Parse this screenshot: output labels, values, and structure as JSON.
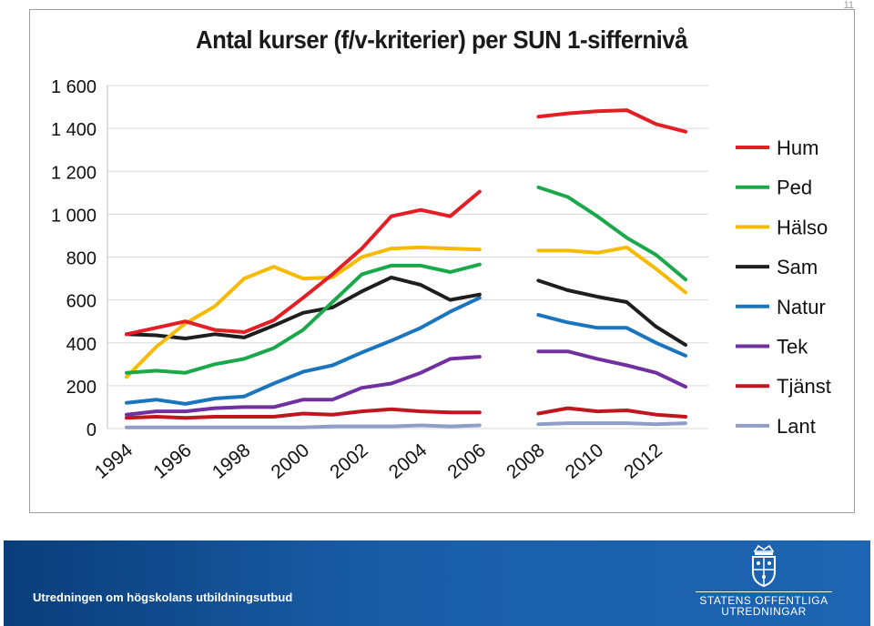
{
  "page": {
    "number": "11",
    "footer_text": "Utredningen om högskolans utbildningsutbud",
    "logo_line1": "STATENS OFFENTLIGA",
    "logo_line2": "UTREDNINGAR"
  },
  "chart_data": {
    "type": "line",
    "title": "Antal kurser (f/v-kriterier) per SUN 1-siffernivå",
    "xlabel": "",
    "ylabel": "",
    "ylim": [
      0,
      1600
    ],
    "yticks": [
      0,
      200,
      400,
      600,
      800,
      1000,
      1200,
      1400,
      1600
    ],
    "ytick_labels": [
      "0",
      "200",
      "400",
      "600",
      "800",
      "1 000",
      "1 200",
      "1 400",
      "1 600"
    ],
    "xtick_labels": [
      "1994",
      "1996",
      "1998",
      "2000",
      "2002",
      "2004",
      "2006",
      "2008",
      "2010",
      "2012"
    ],
    "categories": [
      "1994",
      "1995",
      "1996",
      "1997",
      "1998",
      "1999",
      "2000",
      "2001",
      "2002",
      "2003",
      "2004",
      "2005",
      "2006",
      "2007",
      "2008",
      "2009",
      "2010",
      "2011",
      "2012",
      "2013"
    ],
    "gap_after_index": 12,
    "grid": "horizontal",
    "legend_position": "right",
    "series": [
      {
        "name": "Hum",
        "color": "#e31e24",
        "values": [
          440,
          470,
          500,
          460,
          450,
          505,
          610,
          720,
          840,
          990,
          1020,
          990,
          1105,
          null,
          1455,
          1470,
          1480,
          1485,
          1420,
          1385
        ]
      },
      {
        "name": "Ped",
        "color": "#1aa84b",
        "values": [
          260,
          270,
          260,
          300,
          325,
          375,
          460,
          590,
          720,
          760,
          760,
          730,
          765,
          null,
          1125,
          1080,
          990,
          890,
          810,
          695
        ]
      },
      {
        "name": "Hälso",
        "color": "#f6bb00",
        "values": [
          240,
          380,
          490,
          570,
          700,
          755,
          700,
          705,
          800,
          840,
          845,
          840,
          835,
          null,
          830,
          830,
          820,
          845,
          745,
          635
        ]
      },
      {
        "name": "Sam",
        "color": "#1e1e1e",
        "values": [
          440,
          435,
          420,
          440,
          425,
          480,
          540,
          565,
          640,
          705,
          670,
          600,
          625,
          null,
          690,
          645,
          615,
          590,
          475,
          390
        ]
      },
      {
        "name": "Natur",
        "color": "#1b75bc",
        "values": [
          120,
          135,
          115,
          140,
          150,
          210,
          265,
          295,
          355,
          410,
          470,
          545,
          610,
          null,
          530,
          495,
          470,
          470,
          400,
          340
        ]
      },
      {
        "name": "Tek",
        "color": "#7030a0",
        "values": [
          65,
          80,
          80,
          95,
          100,
          100,
          135,
          135,
          190,
          210,
          260,
          325,
          335,
          null,
          360,
          360,
          325,
          295,
          260,
          195
        ]
      },
      {
        "name": "Tjänst",
        "color": "#c0161d",
        "values": [
          50,
          55,
          50,
          55,
          55,
          55,
          70,
          65,
          80,
          90,
          80,
          75,
          75,
          null,
          70,
          95,
          80,
          85,
          65,
          55
        ]
      },
      {
        "name": "Lant",
        "color": "#8e9ec7",
        "values": [
          5,
          5,
          5,
          5,
          5,
          5,
          5,
          10,
          10,
          10,
          15,
          10,
          15,
          null,
          20,
          25,
          25,
          25,
          20,
          25
        ]
      }
    ]
  }
}
